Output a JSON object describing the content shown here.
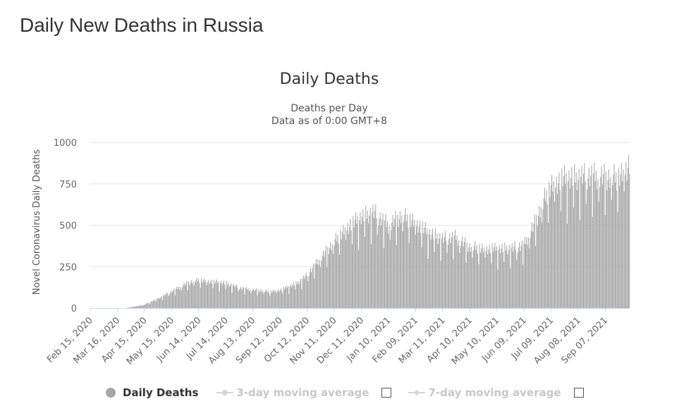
{
  "page": {
    "title": "Daily New Deaths in Russia"
  },
  "chart_header": {
    "title": "Daily Deaths",
    "subtitle_line1": "Deaths per Day",
    "subtitle_line2": "Data as of 0:00 GMT+8"
  },
  "legend": {
    "series1": "Daily Deaths",
    "series2": "3-day moving average",
    "series3": "7-day moving average"
  },
  "colors": {
    "bar": "#a6a6a6",
    "grid": "#e6e6e6",
    "axis_text": "#666666"
  },
  "chart_data": {
    "type": "bar",
    "title": "Daily Deaths",
    "ylabel": "Novel Coronavirus Daily Deaths",
    "xlabel": "",
    "ylim": [
      0,
      1000
    ],
    "yticks": [
      0,
      250,
      500,
      750,
      1000
    ],
    "x_range": [
      "2020-02-15",
      "2021-10-04"
    ],
    "x_tick_labels": [
      "Feb 15, 2020",
      "Mar 16, 2020",
      "Apr 15, 2020",
      "May 15, 2020",
      "Jun 14, 2020",
      "Jul 14, 2020",
      "Aug 13, 2020",
      "Sep 12, 2020",
      "Oct 12, 2020",
      "Nov 11, 2020",
      "Dec 11, 2020",
      "Jan 10, 2021",
      "Feb 09, 2021",
      "Mar 11, 2021",
      "Apr 10, 2021",
      "May 10, 2021",
      "Jun 09, 2021",
      "Jul 09, 2021",
      "Aug 08, 2021",
      "Sep 07, 2021"
    ],
    "grid": true,
    "legend_position": "bottom",
    "series": [
      {
        "name": "Daily Deaths",
        "note_on_values": "daily values read approximately at monthly checkpoints; bars interpolate between them",
        "checkpoints": [
          {
            "x": "2020-02-15",
            "y": 0
          },
          {
            "x": "2020-03-25",
            "y": 0
          },
          {
            "x": "2020-04-15",
            "y": 20
          },
          {
            "x": "2020-05-01",
            "y": 60
          },
          {
            "x": "2020-05-15",
            "y": 100
          },
          {
            "x": "2020-06-01",
            "y": 150
          },
          {
            "x": "2020-06-14",
            "y": 170
          },
          {
            "x": "2020-06-30",
            "y": 160
          },
          {
            "x": "2020-07-14",
            "y": 150
          },
          {
            "x": "2020-08-01",
            "y": 120
          },
          {
            "x": "2020-08-13",
            "y": 110
          },
          {
            "x": "2020-09-01",
            "y": 100
          },
          {
            "x": "2020-09-12",
            "y": 110
          },
          {
            "x": "2020-10-01",
            "y": 150
          },
          {
            "x": "2020-10-12",
            "y": 200
          },
          {
            "x": "2020-10-25",
            "y": 290
          },
          {
            "x": "2020-11-11",
            "y": 400
          },
          {
            "x": "2020-11-25",
            "y": 490
          },
          {
            "x": "2020-12-11",
            "y": 550
          },
          {
            "x": "2020-12-25",
            "y": 580
          },
          {
            "x": "2021-01-10",
            "y": 500
          },
          {
            "x": "2021-01-25",
            "y": 560
          },
          {
            "x": "2021-02-09",
            "y": 520
          },
          {
            "x": "2021-02-25",
            "y": 450
          },
          {
            "x": "2021-03-11",
            "y": 420
          },
          {
            "x": "2021-03-25",
            "y": 430
          },
          {
            "x": "2021-04-10",
            "y": 370
          },
          {
            "x": "2021-04-25",
            "y": 360
          },
          {
            "x": "2021-05-10",
            "y": 360
          },
          {
            "x": "2021-05-25",
            "y": 360
          },
          {
            "x": "2021-06-09",
            "y": 380
          },
          {
            "x": "2021-06-20",
            "y": 500
          },
          {
            "x": "2021-07-01",
            "y": 650
          },
          {
            "x": "2021-07-09",
            "y": 740
          },
          {
            "x": "2021-07-20",
            "y": 780
          },
          {
            "x": "2021-08-08",
            "y": 790
          },
          {
            "x": "2021-08-20",
            "y": 800
          },
          {
            "x": "2021-09-07",
            "y": 790
          },
          {
            "x": "2021-09-20",
            "y": 790
          },
          {
            "x": "2021-09-27",
            "y": 820
          },
          {
            "x": "2021-10-04",
            "y": 880
          }
        ]
      },
      {
        "name": "3-day moving average",
        "visible": false
      },
      {
        "name": "7-day moving average",
        "visible": false
      }
    ]
  }
}
